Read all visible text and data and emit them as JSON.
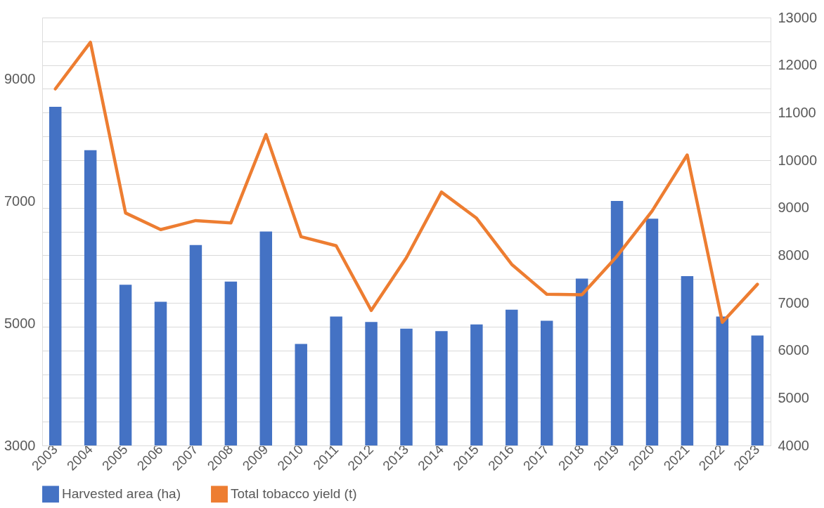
{
  "chart_data": {
    "type": "bar",
    "categories": [
      "2003",
      "2004",
      "2005",
      "2006",
      "2007",
      "2008",
      "2009",
      "2010",
      "2011",
      "2012",
      "2013",
      "2014",
      "2015",
      "2016",
      "2017",
      "2018",
      "2019",
      "2020",
      "2021",
      "2022",
      "2023"
    ],
    "series": [
      {
        "name": "Harvested area (ha)",
        "color": "#4472c4",
        "values": [
          8540,
          7830,
          5630,
          5350,
          6280,
          5680,
          6500,
          4660,
          5110,
          5020,
          4910,
          4870,
          4980,
          5220,
          5040,
          5730,
          7000,
          6710,
          5770,
          5110,
          4800
        ]
      },
      {
        "name": "Total tobacco yield (t)",
        "type": "line",
        "axis": "y2",
        "color": "#ed7d31",
        "line_style": "solid",
        "values": [
          11500,
          12480,
          8890,
          8540,
          8730,
          8680,
          10540,
          8390,
          8200,
          6840,
          7950,
          9330,
          8780,
          7810,
          7180,
          7170,
          7980,
          8930,
          10110,
          6590,
          7390
        ]
      }
    ],
    "ylim": [
      3000,
      10000
    ],
    "yticks": [
      3000,
      5000,
      7000,
      9000
    ],
    "y2lim": [
      4000,
      13000
    ],
    "y2ticks": [
      4000,
      {
        "value": 4500,
        "label": null
      },
      5000,
      {
        "value": 5500,
        "label": null
      },
      6000,
      {
        "value": 6500,
        "label": null
      },
      7000,
      {
        "value": 7500,
        "label": null
      },
      8000,
      {
        "value": 8500,
        "label": null
      },
      9000,
      {
        "value": 9500,
        "label": null
      },
      10000,
      {
        "value": 10500,
        "label": null
      },
      11000,
      {
        "value": 11500,
        "label": null
      },
      12000,
      {
        "value": 12500,
        "label": null
      },
      13000
    ],
    "grid": true,
    "legend": "bottom"
  }
}
